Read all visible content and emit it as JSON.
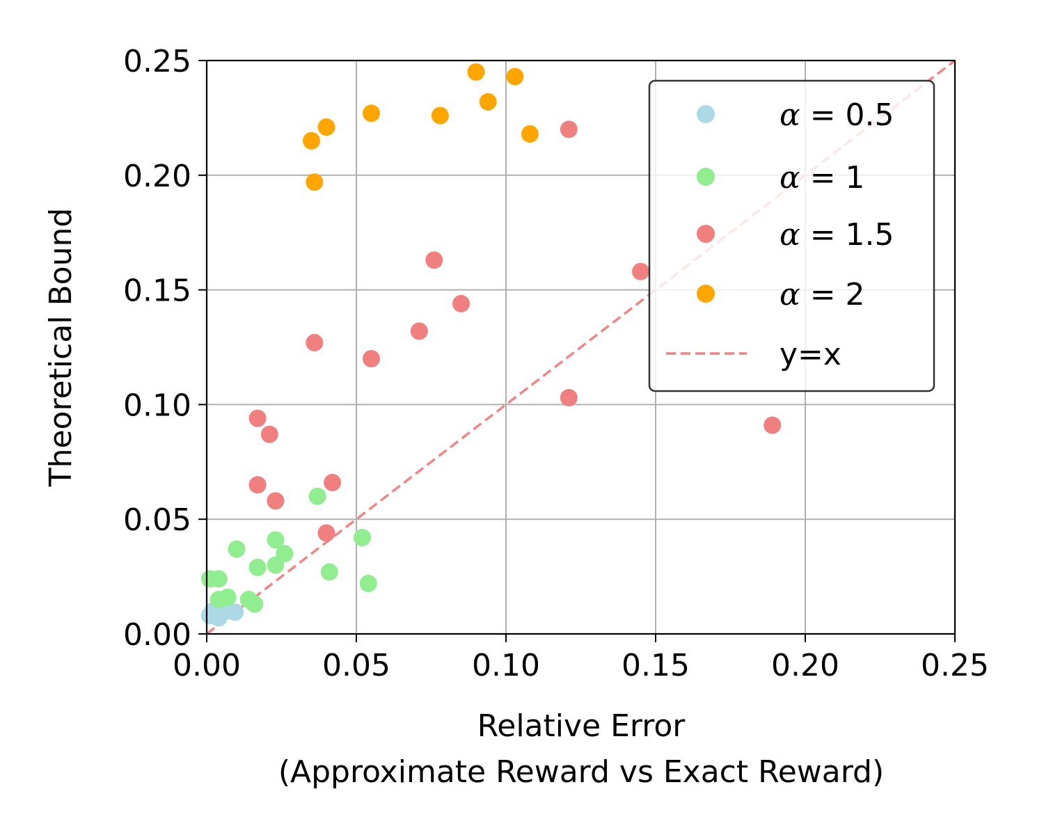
{
  "chart_data": {
    "type": "scatter",
    "xlabel": "Relative Error",
    "xlabel_line2": "(Approximate Reward vs Exact Reward)",
    "ylabel": "Theoretical Bound",
    "xlim": [
      0,
      0.25
    ],
    "ylim": [
      0,
      0.25
    ],
    "x_ticks": [
      "0.00",
      "0.05",
      "0.10",
      "0.15",
      "0.20",
      "0.25"
    ],
    "y_ticks": [
      "0.00",
      "0.05",
      "0.10",
      "0.15",
      "0.20",
      "0.25"
    ],
    "grid": true,
    "legend_position": "top-right",
    "series": [
      {
        "name": "α = 0.5",
        "alpha_symbol": "α",
        "alpha_value": "0.5",
        "color": "#add8e6",
        "points": [
          [
            0.001,
            0.008
          ],
          [
            0.002,
            0.01
          ],
          [
            0.003,
            0.009
          ],
          [
            0.004,
            0.007
          ],
          [
            0.005,
            0.009
          ],
          [
            0.006,
            0.011
          ],
          [
            0.008,
            0.01
          ],
          [
            0.0095,
            0.0095
          ]
        ]
      },
      {
        "name": "α = 1",
        "alpha_symbol": "α",
        "alpha_value": "1",
        "color": "#90ee90",
        "points": [
          [
            0.001,
            0.024
          ],
          [
            0.004,
            0.024
          ],
          [
            0.004,
            0.015
          ],
          [
            0.007,
            0.016
          ],
          [
            0.01,
            0.037
          ],
          [
            0.014,
            0.015
          ],
          [
            0.016,
            0.013
          ],
          [
            0.017,
            0.029
          ],
          [
            0.023,
            0.03
          ],
          [
            0.023,
            0.041
          ],
          [
            0.026,
            0.035
          ],
          [
            0.037,
            0.06
          ],
          [
            0.041,
            0.027
          ],
          [
            0.052,
            0.042
          ],
          [
            0.054,
            0.022
          ]
        ]
      },
      {
        "name": "α = 1.5",
        "alpha_symbol": "α",
        "alpha_value": "1.5",
        "color": "#f08080",
        "points": [
          [
            0.017,
            0.094
          ],
          [
            0.017,
            0.065
          ],
          [
            0.021,
            0.087
          ],
          [
            0.023,
            0.058
          ],
          [
            0.036,
            0.127
          ],
          [
            0.04,
            0.044
          ],
          [
            0.042,
            0.066
          ],
          [
            0.055,
            0.12
          ],
          [
            0.071,
            0.132
          ],
          [
            0.076,
            0.163
          ],
          [
            0.085,
            0.144
          ],
          [
            0.121,
            0.22
          ],
          [
            0.121,
            0.103
          ],
          [
            0.145,
            0.158
          ],
          [
            0.189,
            0.091
          ]
        ]
      },
      {
        "name": "α = 2",
        "alpha_symbol": "α",
        "alpha_value": "2",
        "color": "#ffa500",
        "points": [
          [
            0.035,
            0.215
          ],
          [
            0.036,
            0.197
          ],
          [
            0.04,
            0.221
          ],
          [
            0.055,
            0.227
          ],
          [
            0.078,
            0.226
          ],
          [
            0.09,
            0.245
          ],
          [
            0.094,
            0.232
          ],
          [
            0.103,
            0.243
          ],
          [
            0.108,
            0.218
          ]
        ]
      }
    ],
    "reference_line": {
      "name": "y=x",
      "color": "#f08080",
      "style": "dashed",
      "points": [
        [
          0,
          0
        ],
        [
          0.25,
          0.25
        ]
      ]
    }
  }
}
